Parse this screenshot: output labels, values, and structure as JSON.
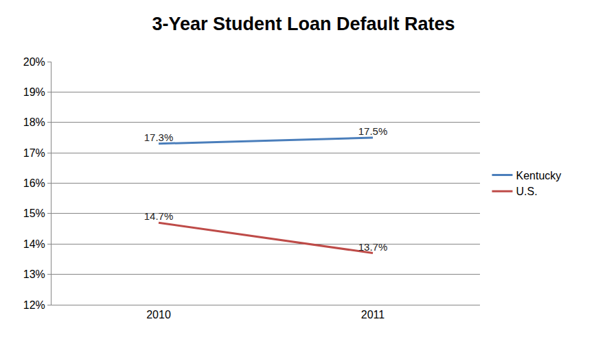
{
  "chart_data": {
    "type": "line",
    "title": "3-Year Student Loan Default Rates",
    "categories": [
      "2010",
      "2011"
    ],
    "series": [
      {
        "name": "Kentucky",
        "color": "#4a7ebb",
        "values": [
          17.3,
          17.5
        ],
        "value_labels": [
          "17.3%",
          "17.5%"
        ]
      },
      {
        "name": "U.S.",
        "color": "#be4b48",
        "values": [
          14.7,
          13.7
        ],
        "value_labels": [
          "14.7%",
          "13.7%"
        ]
      }
    ],
    "ylim": [
      12,
      20
    ],
    "yticks": [
      {
        "value": 12,
        "label": "12%"
      },
      {
        "value": 13,
        "label": "13%"
      },
      {
        "value": 14,
        "label": "14%"
      },
      {
        "value": 15,
        "label": "15%"
      },
      {
        "value": 16,
        "label": "16%"
      },
      {
        "value": 17,
        "label": "17%"
      },
      {
        "value": 18,
        "label": "18%"
      },
      {
        "value": 19,
        "label": "19%"
      },
      {
        "value": 20,
        "label": "20%"
      }
    ],
    "grid": true,
    "legend": "right",
    "data_labels": true
  }
}
